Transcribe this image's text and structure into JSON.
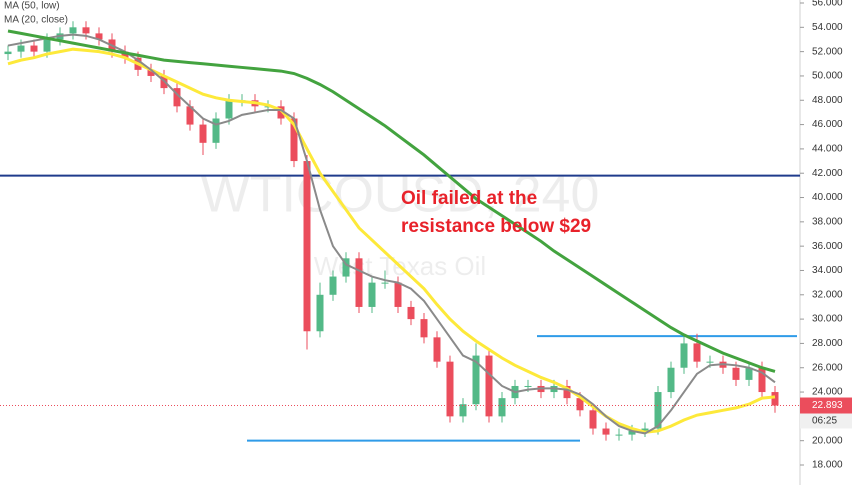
{
  "chart_data": {
    "type": "candlestick",
    "legend": [
      "MA (50, low)",
      "MA (20, close)"
    ],
    "watermark": "WTICOUSD, 240",
    "watermark_subtitle": "West Texas Oil",
    "annotation": [
      "Oil failed at the",
      "resistance below $29"
    ],
    "timer": "06:25",
    "up_color": "#53b987",
    "down_color": "#eb4d5c",
    "candles": {
      "open": [
        51.8,
        52,
        52.5,
        52,
        53,
        53.5,
        54,
        53.5,
        53,
        52,
        51.5,
        50.5,
        50,
        49,
        47.5,
        46,
        44.5,
        46.5,
        48,
        48,
        47.5,
        47.5,
        46.5,
        43,
        29,
        32,
        33.5,
        35,
        31,
        33,
        33,
        31,
        30,
        28.5,
        26.5,
        22,
        23,
        27,
        22,
        23.5,
        24.5,
        24.5,
        24,
        24.5,
        23.5,
        22.5,
        21,
        20.5,
        20.5,
        20.8,
        21,
        24,
        26,
        28,
        26.5,
        26.5,
        26,
        25,
        26,
        24
      ],
      "high": [
        52.5,
        53,
        53,
        53.5,
        54,
        54.5,
        54.5,
        54,
        53.5,
        52.5,
        52,
        51,
        50.5,
        49.5,
        48,
        46.5,
        47,
        48.5,
        48.5,
        48.5,
        48,
        48,
        47,
        43.5,
        33,
        34,
        35.5,
        35.5,
        33.5,
        34,
        33.5,
        31.5,
        30.5,
        29,
        27,
        23.5,
        28,
        27.5,
        24,
        25,
        25,
        25,
        25,
        25,
        24,
        23,
        21.5,
        21,
        21.3,
        21.5,
        24.5,
        26.5,
        28.8,
        28.8,
        27,
        27,
        26.5,
        26.5,
        26.5,
        24.5
      ],
      "low": [
        51.3,
        51.5,
        51.5,
        51.5,
        52.5,
        53,
        53,
        52.5,
        51.5,
        51,
        50,
        49.5,
        48.5,
        47,
        45.5,
        43.5,
        44,
        46,
        47.5,
        47,
        47,
        46,
        42.5,
        27.5,
        28.5,
        31.5,
        33,
        30.5,
        30.5,
        32.5,
        30.5,
        29.5,
        28,
        26,
        21.5,
        21.5,
        22.5,
        21.5,
        21.5,
        23,
        24,
        23.5,
        23.5,
        23,
        22,
        20.5,
        20,
        20,
        20,
        20.3,
        20.5,
        23.5,
        25.5,
        26,
        26,
        25.5,
        24.5,
        24.5,
        23.5,
        22.3
      ],
      "close": [
        52,
        52.5,
        52,
        53,
        53.5,
        54,
        53.5,
        53,
        52,
        51.5,
        50.5,
        50,
        49,
        47.5,
        46,
        44.5,
        46.5,
        48,
        48,
        47.5,
        47.5,
        46.5,
        43,
        29,
        32,
        33.5,
        35,
        31,
        33,
        33,
        31,
        30,
        28.5,
        26.5,
        22,
        23,
        27,
        22,
        23.5,
        24.5,
        24.5,
        24,
        24.5,
        23.5,
        22.5,
        21,
        20.5,
        20.5,
        20.8,
        21,
        24,
        26,
        28,
        26.5,
        26.5,
        26,
        25,
        26,
        24,
        22.893
      ]
    },
    "series": [
      {
        "name": "MA (50, low)",
        "color": "#fde93a",
        "values": [
          51,
          51.3,
          51.5,
          51.8,
          52,
          52.2,
          52.1,
          52,
          51.8,
          51.5,
          51,
          50.5,
          50,
          49.5,
          49,
          48.5,
          48.2,
          48,
          47.9,
          47.8,
          47.6,
          47.2,
          46,
          44,
          42,
          40.5,
          39,
          37.5,
          36.5,
          35.5,
          34.5,
          33.5,
          32.5,
          31.2,
          30,
          29,
          28.2,
          27.5,
          26.8,
          26.2,
          25.7,
          25.2,
          24.8,
          24.3,
          23.6,
          22.8,
          22,
          21.4,
          21,
          20.7,
          20.8,
          21.2,
          21.7,
          22.1,
          22.3,
          22.5,
          22.7,
          23,
          23.5,
          23.6
        ]
      },
      {
        "name": "MA (20, close)",
        "color": "#8a8a8a",
        "values": [
          52.5,
          52.7,
          52.9,
          53.1,
          53.3,
          53.4,
          53.3,
          53.0,
          52.5,
          52,
          51.3,
          50.5,
          49.6,
          48.5,
          47.5,
          46.5,
          46,
          46.3,
          46.8,
          47,
          47.2,
          47.2,
          46.5,
          43,
          39,
          36,
          34.5,
          34,
          33.5,
          33.2,
          33,
          32.5,
          31.5,
          30,
          28.5,
          27,
          26.5,
          25.5,
          24.5,
          24,
          24.2,
          24.3,
          24.3,
          24.2,
          23.8,
          23,
          22,
          21.2,
          20.8,
          20.6,
          21.2,
          22.5,
          24,
          25.5,
          26.2,
          26.3,
          26.2,
          26,
          25.6,
          24.8
        ]
      },
      {
        "color": "#43a33f",
        "values": [
          53.7,
          53.5,
          53.3,
          53.1,
          52.9,
          52.7,
          52.5,
          52.3,
          52.1,
          51.9,
          51.7,
          51.5,
          51.3,
          51.2,
          51.1,
          51,
          50.9,
          50.8,
          50.7,
          50.6,
          50.5,
          50.4,
          50.2,
          49.8,
          49.3,
          48.7,
          48,
          47.3,
          46.6,
          45.9,
          45.1,
          44.3,
          43.5,
          42.6,
          41.7,
          40.8,
          39.9,
          39.2,
          38.5,
          37.8,
          37.1,
          36.4,
          35.6,
          34.9,
          34.2,
          33.5,
          32.8,
          32.1,
          31.4,
          30.7,
          30,
          29.3,
          28.7,
          28.2,
          27.7,
          27.2,
          26.8,
          26.4,
          26,
          25.7
        ]
      }
    ],
    "levels": [
      {
        "value": 41.8,
        "color": "#1f3b8c"
      },
      {
        "value": 20,
        "color": "#2f9be8"
      },
      {
        "value": 28.6,
        "color": "#2f9be8"
      }
    ],
    "ylim": [
      18,
      56
    ],
    "yticks": [
      {
        "value": 18,
        "label": "18.000"
      },
      {
        "value": 20,
        "label": "20.000"
      },
      {
        "value": 22,
        "label": "22.000"
      },
      {
        "value": 24,
        "label": "24.000"
      },
      {
        "value": 26,
        "label": "26.000"
      },
      {
        "value": 28,
        "label": "28.000"
      },
      {
        "value": 30,
        "label": "30.000"
      },
      {
        "value": 32,
        "label": "32.000"
      },
      {
        "value": 34,
        "label": "34.000"
      },
      {
        "value": 36,
        "label": "36.000"
      },
      {
        "value": 38,
        "label": "38.000"
      },
      {
        "value": 40,
        "label": "40.000"
      },
      {
        "value": 42,
        "label": "42.000"
      },
      {
        "value": 44,
        "label": "44.000"
      },
      {
        "value": 46,
        "label": "46.000"
      },
      {
        "value": 48,
        "label": "48.000"
      },
      {
        "value": 50,
        "label": "50.000"
      },
      {
        "value": 52,
        "label": "52.000"
      },
      {
        "value": 54,
        "label": "54.000"
      },
      {
        "value": 56,
        "label": "56.000"
      }
    ]
  }
}
